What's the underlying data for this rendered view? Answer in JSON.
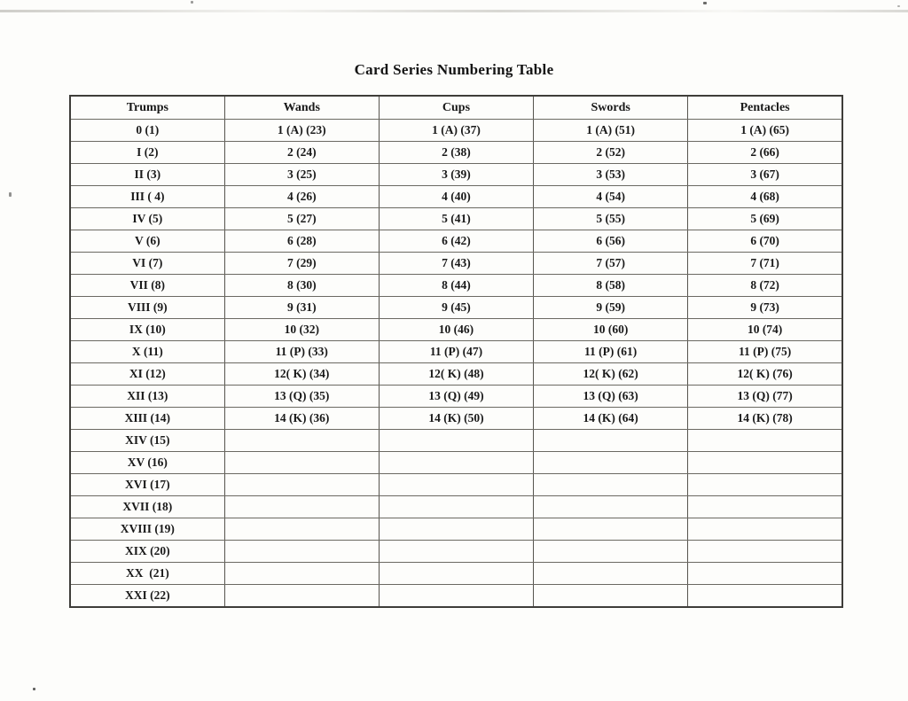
{
  "page": {
    "title": "Card Series Numbering Table"
  },
  "colors": {
    "paper": "#fdfdfb",
    "ink": "#191919",
    "table_border": "#56544e"
  },
  "table": {
    "columns": [
      "Trumps",
      "Wands",
      "Cups",
      "Swords",
      "Pentacles"
    ],
    "rows": [
      [
        "0 (1)",
        "1 (A) (23)",
        "1 (A) (37)",
        "1 (A) (51)",
        "1 (A) (65)"
      ],
      [
        "I (2)",
        "2 (24)",
        "2 (38)",
        "2 (52)",
        "2 (66)"
      ],
      [
        "II (3)",
        "3 (25)",
        "3 (39)",
        "3 (53)",
        "3 (67)"
      ],
      [
        "III ( 4)",
        "4 (26)",
        "4 (40)",
        "4 (54)",
        "4 (68)"
      ],
      [
        "IV (5)",
        "5 (27)",
        "5 (41)",
        "5 (55)",
        "5 (69)"
      ],
      [
        "V (6)",
        "6 (28)",
        "6 (42)",
        "6 (56)",
        "6 (70)"
      ],
      [
        "VI (7)",
        "7 (29)",
        "7 (43)",
        "7 (57)",
        "7 (71)"
      ],
      [
        "VII (8)",
        "8 (30)",
        "8 (44)",
        "8 (58)",
        "8 (72)"
      ],
      [
        "VIII (9)",
        "9 (31)",
        "9 (45)",
        "9 (59)",
        "9 (73)"
      ],
      [
        "IX (10)",
        "10 (32)",
        "10 (46)",
        "10 (60)",
        "10 (74)"
      ],
      [
        "X (11)",
        "11 (P) (33)",
        "11 (P) (47)",
        "11 (P) (61)",
        "11 (P) (75)"
      ],
      [
        "XI (12)",
        "12( K) (34)",
        "12( K) (48)",
        "12( K) (62)",
        "12( K) (76)"
      ],
      [
        "XII (13)",
        "13 (Q) (35)",
        "13 (Q) (49)",
        "13 (Q) (63)",
        "13 (Q) (77)"
      ],
      [
        "XIII (14)",
        "14 (K) (36)",
        "14 (K) (50)",
        "14 (K) (64)",
        "14 (K) (78)"
      ],
      [
        "XIV (15)",
        "",
        "",
        "",
        ""
      ],
      [
        "XV (16)",
        "",
        "",
        "",
        ""
      ],
      [
        "XVI (17)",
        "",
        "",
        "",
        ""
      ],
      [
        "XVII (18)",
        "",
        "",
        "",
        ""
      ],
      [
        "XVIII (19)",
        "",
        "",
        "",
        ""
      ],
      [
        "XIX (20)",
        "",
        "",
        "",
        ""
      ],
      [
        "XX  (21)",
        "",
        "",
        "",
        ""
      ],
      [
        "XXI (22)",
        "",
        "",
        "",
        ""
      ]
    ]
  }
}
